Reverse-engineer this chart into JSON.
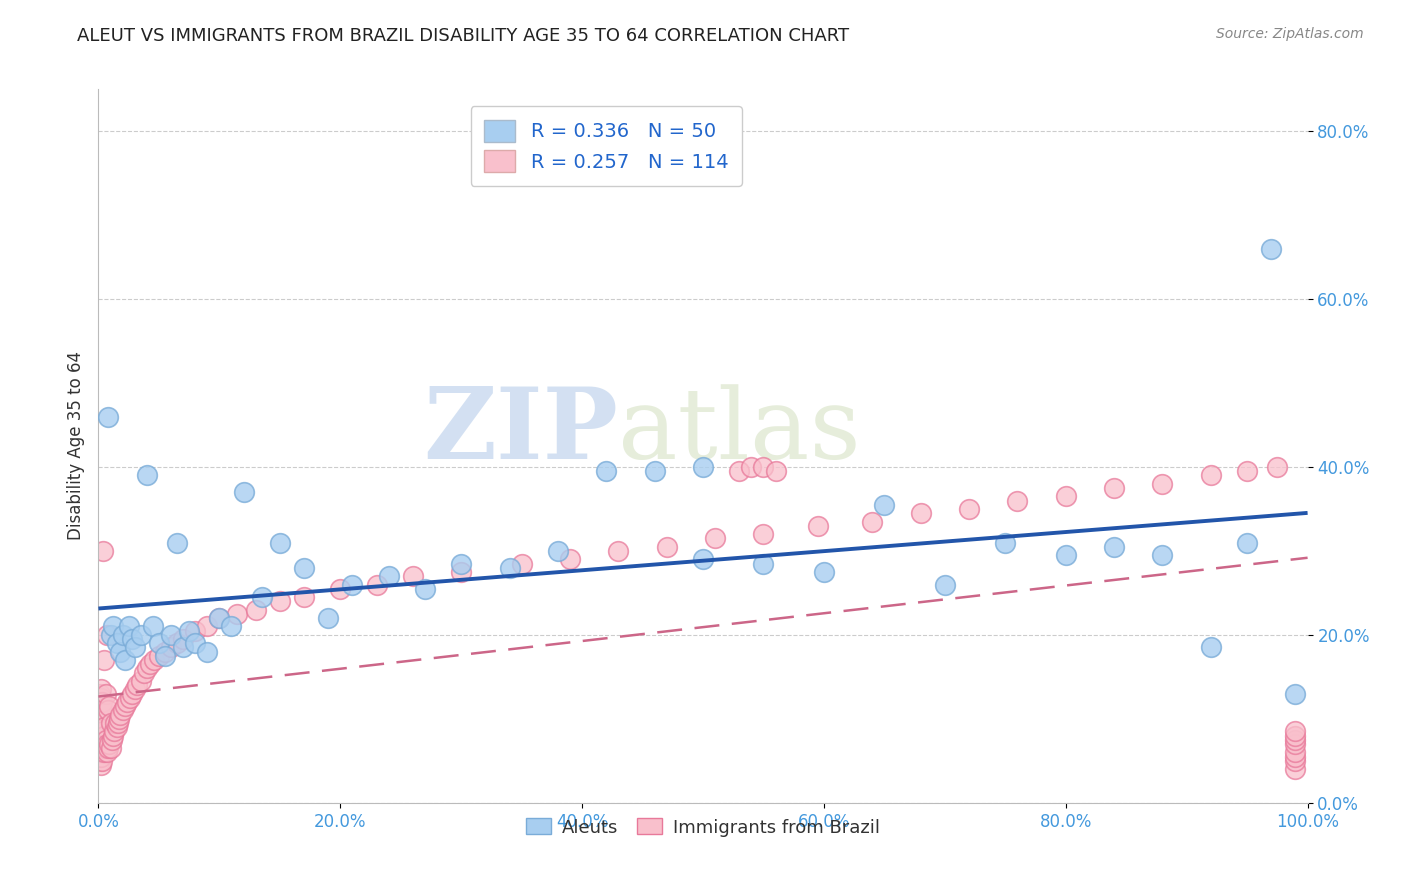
{
  "title": "ALEUT VS IMMIGRANTS FROM BRAZIL DISABILITY AGE 35 TO 64 CORRELATION CHART",
  "source": "Source: ZipAtlas.com",
  "ylabel": "Disability Age 35 to 64",
  "xlim": [
    0.0,
    1.0
  ],
  "ylim": [
    0.0,
    0.85
  ],
  "xticks": [
    0.0,
    0.2,
    0.4,
    0.6,
    0.8,
    1.0
  ],
  "xticklabels": [
    "0.0%",
    "20.0%",
    "40.0%",
    "60.0%",
    "80.0%",
    "100.0%"
  ],
  "yticks": [
    0.0,
    0.2,
    0.4,
    0.6,
    0.8
  ],
  "yticklabels": [
    "0.0%",
    "20.0%",
    "40.0%",
    "60.0%",
    "80.0%"
  ],
  "aleut_color": "#a8cef0",
  "aleut_edge_color": "#7aacd8",
  "brazil_color": "#f9c0cc",
  "brazil_edge_color": "#e8799a",
  "aleut_line_color": "#2255aa",
  "brazil_line_color": "#cc6688",
  "R_aleut": 0.336,
  "N_aleut": 50,
  "R_brazil": 0.257,
  "N_brazil": 114,
  "watermark_zip": "ZIP",
  "watermark_atlas": "atlas",
  "legend_label_aleut": "Aleuts",
  "legend_label_brazil": "Immigrants from Brazil",
  "aleut_x": [
    0.008,
    0.01,
    0.012,
    0.015,
    0.018,
    0.02,
    0.022,
    0.025,
    0.028,
    0.03,
    0.035,
    0.04,
    0.045,
    0.05,
    0.055,
    0.06,
    0.065,
    0.07,
    0.075,
    0.08,
    0.09,
    0.1,
    0.11,
    0.12,
    0.135,
    0.15,
    0.17,
    0.19,
    0.21,
    0.24,
    0.27,
    0.3,
    0.34,
    0.38,
    0.42,
    0.46,
    0.5,
    0.55,
    0.6,
    0.65,
    0.7,
    0.75,
    0.8,
    0.84,
    0.88,
    0.92,
    0.95,
    0.97,
    0.99,
    0.5
  ],
  "aleut_y": [
    0.46,
    0.2,
    0.21,
    0.19,
    0.18,
    0.2,
    0.17,
    0.21,
    0.195,
    0.185,
    0.2,
    0.39,
    0.21,
    0.19,
    0.175,
    0.2,
    0.31,
    0.185,
    0.205,
    0.19,
    0.18,
    0.22,
    0.21,
    0.37,
    0.245,
    0.31,
    0.28,
    0.22,
    0.26,
    0.27,
    0.255,
    0.285,
    0.28,
    0.3,
    0.395,
    0.395,
    0.29,
    0.285,
    0.275,
    0.355,
    0.26,
    0.31,
    0.295,
    0.305,
    0.295,
    0.185,
    0.31,
    0.66,
    0.13,
    0.4
  ],
  "brazil_x": [
    0.001,
    0.001,
    0.001,
    0.001,
    0.001,
    0.001,
    0.001,
    0.001,
    0.001,
    0.001,
    0.002,
    0.002,
    0.002,
    0.002,
    0.002,
    0.002,
    0.002,
    0.002,
    0.002,
    0.002,
    0.003,
    0.003,
    0.003,
    0.003,
    0.003,
    0.003,
    0.003,
    0.003,
    0.004,
    0.004,
    0.004,
    0.004,
    0.005,
    0.005,
    0.005,
    0.005,
    0.005,
    0.006,
    0.006,
    0.006,
    0.007,
    0.007,
    0.007,
    0.008,
    0.008,
    0.009,
    0.009,
    0.01,
    0.01,
    0.011,
    0.012,
    0.013,
    0.014,
    0.015,
    0.016,
    0.017,
    0.018,
    0.02,
    0.022,
    0.024,
    0.026,
    0.028,
    0.03,
    0.032,
    0.035,
    0.038,
    0.04,
    0.043,
    0.046,
    0.05,
    0.055,
    0.06,
    0.065,
    0.07,
    0.08,
    0.09,
    0.1,
    0.115,
    0.13,
    0.15,
    0.17,
    0.2,
    0.23,
    0.26,
    0.3,
    0.35,
    0.39,
    0.43,
    0.47,
    0.51,
    0.55,
    0.595,
    0.64,
    0.68,
    0.72,
    0.76,
    0.8,
    0.84,
    0.88,
    0.92,
    0.95,
    0.975,
    0.99,
    0.99,
    0.99,
    0.99,
    0.99,
    0.99,
    0.99,
    0.99,
    0.53,
    0.54,
    0.55,
    0.56
  ],
  "brazil_y": [
    0.05,
    0.06,
    0.07,
    0.08,
    0.09,
    0.1,
    0.11,
    0.12,
    0.13,
    0.055,
    0.065,
    0.075,
    0.085,
    0.095,
    0.105,
    0.115,
    0.125,
    0.045,
    0.055,
    0.135,
    0.06,
    0.07,
    0.08,
    0.09,
    0.1,
    0.11,
    0.12,
    0.05,
    0.065,
    0.075,
    0.085,
    0.3,
    0.06,
    0.07,
    0.08,
    0.09,
    0.17,
    0.065,
    0.075,
    0.13,
    0.06,
    0.07,
    0.2,
    0.065,
    0.11,
    0.07,
    0.115,
    0.065,
    0.095,
    0.075,
    0.08,
    0.085,
    0.095,
    0.09,
    0.095,
    0.1,
    0.105,
    0.11,
    0.115,
    0.12,
    0.125,
    0.13,
    0.135,
    0.14,
    0.145,
    0.155,
    0.16,
    0.165,
    0.17,
    0.175,
    0.18,
    0.185,
    0.19,
    0.195,
    0.205,
    0.21,
    0.22,
    0.225,
    0.23,
    0.24,
    0.245,
    0.255,
    0.26,
    0.27,
    0.275,
    0.285,
    0.29,
    0.3,
    0.305,
    0.315,
    0.32,
    0.33,
    0.335,
    0.345,
    0.35,
    0.36,
    0.365,
    0.375,
    0.38,
    0.39,
    0.395,
    0.4,
    0.04,
    0.05,
    0.055,
    0.06,
    0.07,
    0.075,
    0.08,
    0.085,
    0.395,
    0.4,
    0.4,
    0.395
  ]
}
